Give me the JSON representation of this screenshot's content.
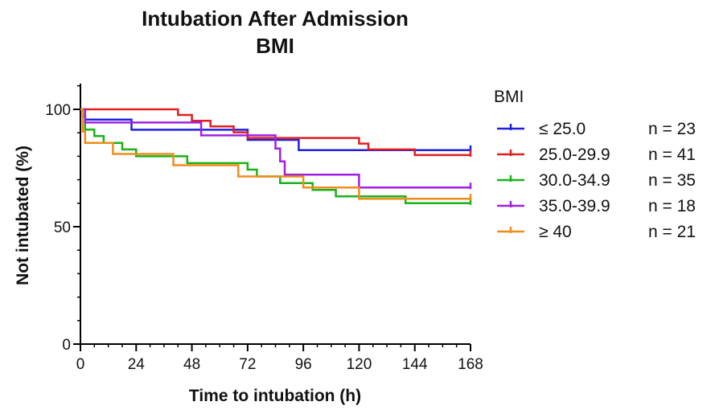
{
  "chart_data": {
    "type": "line",
    "step": true,
    "title": "Intubation After Admission",
    "subtitle": "BMI",
    "xlabel": "Time to intubation (h)",
    "ylabel": "Not intubated (%)",
    "xlim": [
      0,
      168
    ],
    "ylim": [
      0,
      100
    ],
    "xticks": [
      0,
      24,
      48,
      72,
      96,
      120,
      144,
      168
    ],
    "yticks": [
      0,
      50,
      100
    ],
    "grid": false,
    "legend": {
      "title": "BMI",
      "placement": "right"
    },
    "series": [
      {
        "name": "≤ 25.0",
        "n_label": "n = 23",
        "color": "#1f1fe0",
        "x": [
          0,
          2,
          22,
          62,
          72,
          94,
          168
        ],
        "y": [
          100,
          95.6,
          91.3,
          91.3,
          87,
          82.6,
          82.6
        ]
      },
      {
        "name": "25.0-29.9",
        "n_label": "n = 41",
        "color": "#e01f1f",
        "x": [
          0,
          38,
          42,
          48,
          56,
          66,
          72,
          84,
          120,
          124,
          144,
          168
        ],
        "y": [
          100,
          100,
          97.6,
          95.1,
          92.7,
          90.2,
          87.8,
          87.8,
          85.4,
          82.9,
          80.5,
          80.5
        ]
      },
      {
        "name": "30.0-34.9",
        "n_label": "n = 35",
        "color": "#19b319",
        "x": [
          0,
          1,
          2,
          6,
          10,
          18,
          24,
          46,
          62,
          72,
          76,
          86,
          100,
          110,
          118,
          140,
          168
        ],
        "y": [
          100,
          97.1,
          91.4,
          88.6,
          85.7,
          82.9,
          80,
          77.1,
          77.1,
          74.3,
          71.4,
          68.6,
          65.7,
          62.9,
          62.9,
          60,
          60
        ]
      },
      {
        "name": "35.0-39.9",
        "n_label": "n = 18",
        "color": "#a020e0",
        "x": [
          0,
          2,
          34,
          42,
          52,
          58,
          64,
          84,
          86,
          88,
          96,
          120,
          168
        ],
        "y": [
          100,
          94.4,
          94.4,
          94.4,
          88.9,
          88.9,
          88.9,
          83.3,
          77.8,
          72.2,
          72.2,
          66.7,
          66.7
        ]
      },
      {
        "name": "≥ 40",
        "n_label": "n = 21",
        "color": "#f08c1a",
        "x": [
          0,
          1,
          2,
          14,
          40,
          68,
          78,
          96,
          120,
          168
        ],
        "y": [
          100,
          90.5,
          85.7,
          81,
          76.2,
          71.4,
          71.4,
          66.7,
          61.9,
          61.9
        ]
      }
    ]
  }
}
